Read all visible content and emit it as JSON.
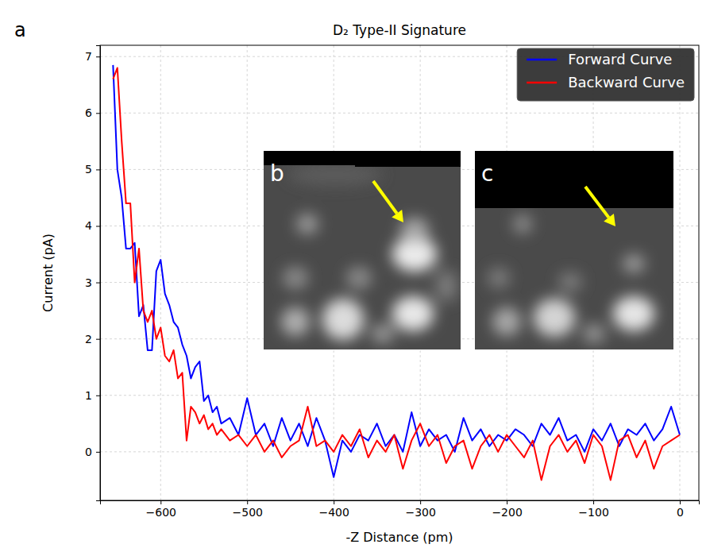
{
  "chart_data": {
    "type": "line",
    "title": "D₂ Type-II Signature",
    "panel_labels": [
      "a",
      "b",
      "c"
    ],
    "x_label": "-Z Distance (pm)",
    "y_label": "Current (pA)",
    "x": [
      -655,
      -650,
      -645,
      -640,
      -635,
      -630,
      -625,
      -620,
      -615,
      -610,
      -605,
      -600,
      -595,
      -590,
      -585,
      -580,
      -575,
      -570,
      -565,
      -560,
      -555,
      -550,
      -545,
      -540,
      -535,
      -530,
      -520,
      -510,
      -500,
      -490,
      -480,
      -470,
      -460,
      -450,
      -440,
      -430,
      -420,
      -410,
      -400,
      -390,
      -380,
      -370,
      -360,
      -350,
      -340,
      -330,
      -320,
      -310,
      -300,
      -290,
      -280,
      -270,
      -260,
      -250,
      -240,
      -230,
      -220,
      -210,
      -200,
      -190,
      -180,
      -170,
      -160,
      -150,
      -140,
      -130,
      -120,
      -110,
      -100,
      -90,
      -80,
      -70,
      -60,
      -50,
      -40,
      -30,
      -20,
      -10,
      0
    ],
    "series": [
      {
        "name": "Forward Curve",
        "color": "#0000ff",
        "values": [
          6.85,
          5.0,
          4.5,
          3.6,
          3.6,
          3.7,
          2.4,
          2.6,
          1.8,
          1.8,
          3.2,
          3.4,
          2.8,
          2.6,
          2.3,
          2.2,
          1.9,
          1.7,
          1.3,
          1.5,
          1.6,
          0.9,
          1.0,
          0.7,
          0.8,
          0.5,
          0.6,
          0.3,
          0.95,
          0.3,
          0.5,
          0.1,
          0.6,
          0.2,
          0.5,
          0.1,
          0.6,
          0.2,
          -0.45,
          0.2,
          0.0,
          0.3,
          0.2,
          0.5,
          0.1,
          0.3,
          0.0,
          0.7,
          0.1,
          0.4,
          0.2,
          0.3,
          0.0,
          0.6,
          0.2,
          0.4,
          0.1,
          0.3,
          0.2,
          0.4,
          0.3,
          0.1,
          0.5,
          0.3,
          0.6,
          0.2,
          0.3,
          0.0,
          0.4,
          0.2,
          0.5,
          0.1,
          0.4,
          0.3,
          0.5,
          0.2,
          0.4,
          0.8,
          0.3
        ]
      },
      {
        "name": "Backward Curve",
        "color": "#ff0000",
        "values": [
          6.6,
          6.8,
          5.5,
          4.4,
          4.4,
          3.0,
          3.6,
          2.5,
          2.3,
          2.5,
          2.0,
          2.2,
          1.7,
          1.6,
          1.8,
          1.3,
          1.4,
          0.2,
          0.8,
          0.7,
          0.5,
          0.65,
          0.4,
          0.5,
          0.3,
          0.4,
          0.2,
          0.3,
          0.1,
          0.3,
          0.0,
          0.2,
          -0.1,
          0.1,
          0.2,
          0.8,
          0.1,
          0.2,
          0.0,
          0.3,
          0.1,
          0.4,
          -0.1,
          0.2,
          0.0,
          0.3,
          -0.3,
          0.2,
          0.5,
          0.1,
          0.3,
          -0.2,
          0.1,
          0.2,
          -0.3,
          0.1,
          0.3,
          0.0,
          0.3,
          0.1,
          -0.1,
          0.2,
          -0.5,
          0.1,
          0.3,
          0.0,
          0.2,
          -0.2,
          0.3,
          0.1,
          -0.5,
          0.2,
          0.3,
          -0.1,
          0.2,
          -0.3,
          0.1,
          0.2,
          0.3
        ]
      }
    ],
    "xlim": [
      -670,
      22
    ],
    "ylim": [
      -0.86,
      7.2
    ],
    "xticks": [
      -600,
      -500,
      -400,
      -300,
      -200,
      -100,
      0
    ],
    "yticks": [
      0,
      1,
      2,
      3,
      4,
      5,
      6,
      7
    ],
    "grid": true,
    "legend": "upper right"
  }
}
